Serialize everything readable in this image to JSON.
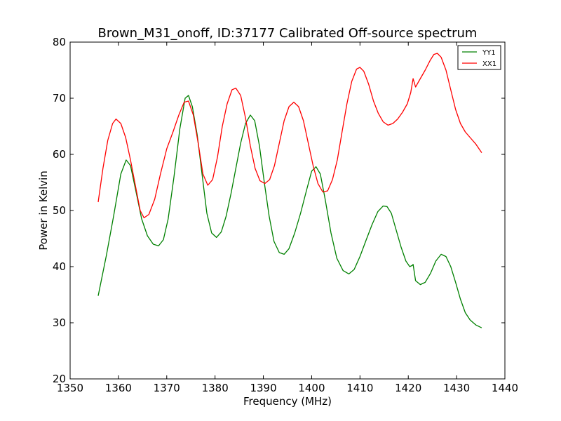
{
  "chart_data": {
    "type": "line",
    "title": "Brown_M31_onoff, ID:37177 Calibrated Off-source spectrum",
    "xlabel": "Frequency (MHz)",
    "ylabel": "Power in Kelvin",
    "xlim": [
      1350,
      1440
    ],
    "ylim": [
      20,
      80
    ],
    "xticks": [
      "1350",
      "1360",
      "1370",
      "1380",
      "1390",
      "1400",
      "1410",
      "1420",
      "1430",
      "1440"
    ],
    "yticks": [
      "20",
      "30",
      "40",
      "50",
      "60",
      "70",
      "80"
    ],
    "grid": false,
    "legend_position": "top-right",
    "series": [
      {
        "name": "YY1",
        "color": "#008000",
        "points": [
          [
            1355.8,
            34.8
          ],
          [
            1357.5,
            42.0
          ],
          [
            1359.0,
            49.0
          ],
          [
            1360.5,
            56.5
          ],
          [
            1361.6,
            59.0
          ],
          [
            1362.5,
            58.0
          ],
          [
            1363.6,
            53.5
          ],
          [
            1364.8,
            48.5
          ],
          [
            1366.0,
            45.5
          ],
          [
            1367.2,
            44.0
          ],
          [
            1368.3,
            43.7
          ],
          [
            1369.3,
            44.8
          ],
          [
            1370.3,
            48.5
          ],
          [
            1371.5,
            56.0
          ],
          [
            1372.7,
            64.5
          ],
          [
            1373.8,
            70.0
          ],
          [
            1374.5,
            70.5
          ],
          [
            1375.3,
            68.5
          ],
          [
            1376.3,
            63.5
          ],
          [
            1377.3,
            56.5
          ],
          [
            1378.3,
            49.5
          ],
          [
            1379.3,
            46.0
          ],
          [
            1380.3,
            45.2
          ],
          [
            1381.3,
            46.2
          ],
          [
            1382.3,
            49.0
          ],
          [
            1383.3,
            53.0
          ],
          [
            1384.3,
            57.5
          ],
          [
            1385.3,
            62.0
          ],
          [
            1386.3,
            65.5
          ],
          [
            1387.3,
            67.0
          ],
          [
            1388.2,
            66.0
          ],
          [
            1389.2,
            61.5
          ],
          [
            1390.2,
            55.0
          ],
          [
            1391.2,
            49.0
          ],
          [
            1392.2,
            44.5
          ],
          [
            1393.3,
            42.5
          ],
          [
            1394.3,
            42.2
          ],
          [
            1395.3,
            43.2
          ],
          [
            1396.5,
            46.0
          ],
          [
            1397.7,
            49.5
          ],
          [
            1398.9,
            53.5
          ],
          [
            1400.0,
            57.0
          ],
          [
            1400.9,
            57.8
          ],
          [
            1401.8,
            56.5
          ],
          [
            1402.8,
            52.0
          ],
          [
            1404.0,
            46.0
          ],
          [
            1405.2,
            41.5
          ],
          [
            1406.5,
            39.3
          ],
          [
            1407.7,
            38.7
          ],
          [
            1408.8,
            39.5
          ],
          [
            1410.0,
            41.8
          ],
          [
            1411.3,
            44.8
          ],
          [
            1412.5,
            47.5
          ],
          [
            1413.7,
            49.8
          ],
          [
            1414.8,
            50.8
          ],
          [
            1415.6,
            50.7
          ],
          [
            1416.5,
            49.5
          ],
          [
            1417.5,
            46.5
          ],
          [
            1418.5,
            43.5
          ],
          [
            1419.5,
            41.0
          ],
          [
            1420.3,
            40.0
          ],
          [
            1420.8,
            40.2
          ],
          [
            1421.0,
            40.4
          ],
          [
            1421.5,
            37.5
          ],
          [
            1422.5,
            36.8
          ],
          [
            1423.5,
            37.2
          ],
          [
            1424.6,
            38.8
          ],
          [
            1425.7,
            41.0
          ],
          [
            1426.8,
            42.2
          ],
          [
            1427.8,
            41.8
          ],
          [
            1428.8,
            40.0
          ],
          [
            1429.8,
            37.2
          ],
          [
            1430.8,
            34.2
          ],
          [
            1431.8,
            31.8
          ],
          [
            1432.8,
            30.5
          ],
          [
            1434.0,
            29.6
          ],
          [
            1435.2,
            29.1
          ]
        ]
      },
      {
        "name": "XX1",
        "color": "#ff0000",
        "points": [
          [
            1355.8,
            51.5
          ],
          [
            1356.8,
            57.5
          ],
          [
            1357.8,
            62.5
          ],
          [
            1358.8,
            65.5
          ],
          [
            1359.5,
            66.3
          ],
          [
            1360.5,
            65.5
          ],
          [
            1361.5,
            63.0
          ],
          [
            1362.5,
            59.0
          ],
          [
            1363.5,
            54.5
          ],
          [
            1364.5,
            50.0
          ],
          [
            1365.3,
            48.7
          ],
          [
            1366.3,
            49.3
          ],
          [
            1367.5,
            52.0
          ],
          [
            1368.7,
            56.5
          ],
          [
            1370.0,
            61.0
          ],
          [
            1371.3,
            64.0
          ],
          [
            1372.5,
            67.0
          ],
          [
            1373.6,
            69.3
          ],
          [
            1374.5,
            69.5
          ],
          [
            1375.5,
            67.0
          ],
          [
            1376.5,
            62.0
          ],
          [
            1377.5,
            56.5
          ],
          [
            1378.5,
            54.5
          ],
          [
            1379.5,
            55.5
          ],
          [
            1380.5,
            59.5
          ],
          [
            1381.5,
            65.0
          ],
          [
            1382.5,
            69.0
          ],
          [
            1383.5,
            71.5
          ],
          [
            1384.3,
            71.8
          ],
          [
            1385.3,
            70.5
          ],
          [
            1386.3,
            66.5
          ],
          [
            1387.3,
            61.5
          ],
          [
            1388.3,
            57.5
          ],
          [
            1389.3,
            55.3
          ],
          [
            1390.3,
            54.8
          ],
          [
            1391.3,
            55.5
          ],
          [
            1392.3,
            58.0
          ],
          [
            1393.3,
            62.0
          ],
          [
            1394.3,
            66.0
          ],
          [
            1395.3,
            68.5
          ],
          [
            1396.3,
            69.3
          ],
          [
            1397.3,
            68.5
          ],
          [
            1398.3,
            66.0
          ],
          [
            1399.3,
            62.0
          ],
          [
            1400.3,
            58.0
          ],
          [
            1401.3,
            54.8
          ],
          [
            1402.3,
            53.3
          ],
          [
            1403.3,
            53.5
          ],
          [
            1404.3,
            55.5
          ],
          [
            1405.3,
            59.0
          ],
          [
            1406.3,
            64.0
          ],
          [
            1407.3,
            69.0
          ],
          [
            1408.3,
            73.0
          ],
          [
            1409.3,
            75.2
          ],
          [
            1410.0,
            75.5
          ],
          [
            1410.8,
            74.8
          ],
          [
            1411.8,
            72.5
          ],
          [
            1412.8,
            69.5
          ],
          [
            1413.8,
            67.3
          ],
          [
            1414.8,
            65.8
          ],
          [
            1415.8,
            65.2
          ],
          [
            1416.8,
            65.5
          ],
          [
            1417.8,
            66.3
          ],
          [
            1418.8,
            67.5
          ],
          [
            1419.8,
            69.0
          ],
          [
            1420.5,
            71.0
          ],
          [
            1421.0,
            73.5
          ],
          [
            1421.5,
            72.0
          ],
          [
            1422.5,
            73.5
          ],
          [
            1423.5,
            75.0
          ],
          [
            1424.5,
            76.7
          ],
          [
            1425.3,
            77.8
          ],
          [
            1426.0,
            78.0
          ],
          [
            1426.8,
            77.3
          ],
          [
            1427.8,
            75.0
          ],
          [
            1428.8,
            71.5
          ],
          [
            1429.8,
            68.0
          ],
          [
            1430.8,
            65.5
          ],
          [
            1431.8,
            64.0
          ],
          [
            1432.8,
            63.0
          ],
          [
            1434.0,
            61.8
          ],
          [
            1435.2,
            60.3
          ]
        ]
      }
    ]
  }
}
